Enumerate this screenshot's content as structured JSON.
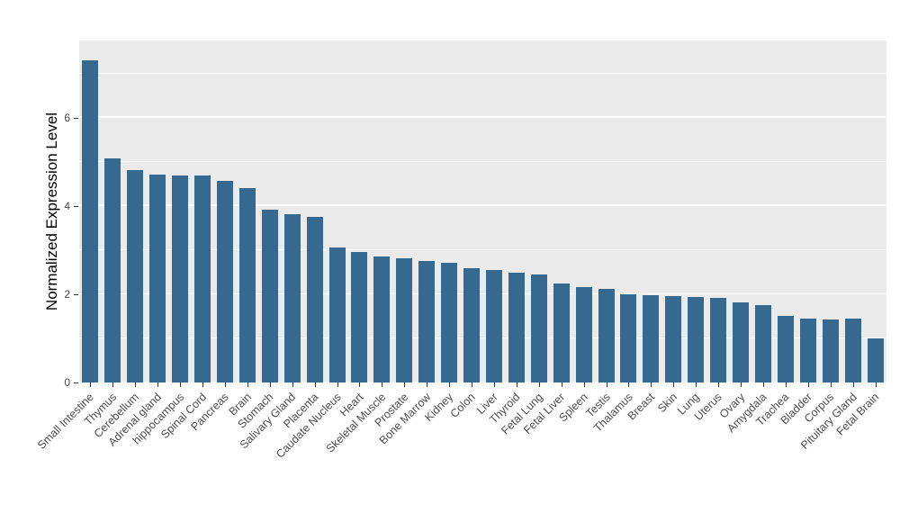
{
  "chart_data": {
    "type": "bar",
    "title": "",
    "xlabel": "",
    "ylabel": "Normalized Expression Level",
    "categories": [
      "Small Intestine",
      "Thymus",
      "Cerebellum",
      "Adrenal gland",
      "hippocampus",
      "Spinal Cord",
      "Pancreas",
      "Brain",
      "Stomach",
      "Salivary Gland",
      "Placenta",
      "Caudate Nucleus",
      "Heart",
      "Skeletal Muscle",
      "Prostate",
      "Bone Marrow",
      "Kidney",
      "Colon",
      "Liver",
      "Thyroid",
      "Fetal Lung",
      "Fetal Liver",
      "Spleen",
      "Testis",
      "Thalamus",
      "Breast",
      "Skin",
      "Lung",
      "Uterus",
      "Ovary",
      "Amygdala",
      "Trachea",
      "Bladder",
      "Corpus",
      "Pituitary Gland",
      "Fetal Brain"
    ],
    "values": [
      7.3,
      5.08,
      4.82,
      4.72,
      4.7,
      4.69,
      4.57,
      4.41,
      3.92,
      3.82,
      3.76,
      3.06,
      2.96,
      2.86,
      2.82,
      2.76,
      2.71,
      2.59,
      2.55,
      2.49,
      2.45,
      2.24,
      2.16,
      2.12,
      2.0,
      1.98,
      1.96,
      1.94,
      1.92,
      1.82,
      1.76,
      1.51,
      1.45,
      1.43,
      1.45,
      1.0
    ],
    "ylim": [
      0,
      7.75
    ],
    "yticks": [
      0,
      2,
      4,
      6
    ],
    "minor_gridlines": [
      1,
      3,
      5,
      7
    ],
    "grid": true,
    "legend": "none",
    "bar_color": "#35698F",
    "panel_color": "#EBEBEB",
    "grid_color": "#FFFFFF",
    "axis_text_color": "#4D4D4D",
    "title_color": "#000000"
  }
}
